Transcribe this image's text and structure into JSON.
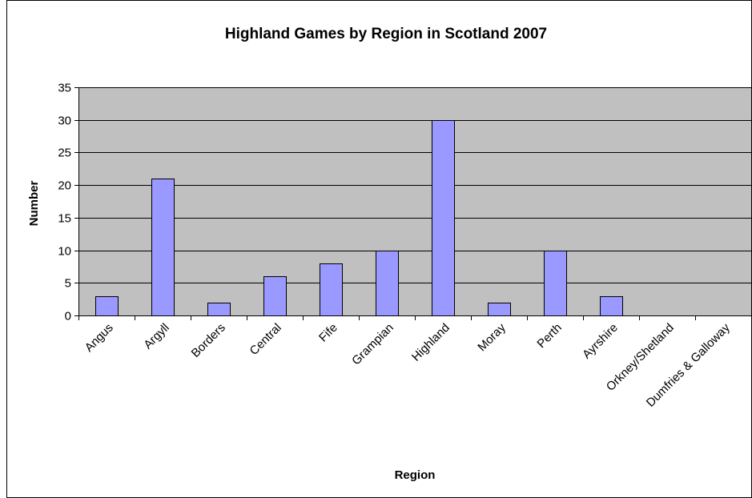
{
  "chart_data": {
    "type": "bar",
    "title": "Highland Games by Region in Scotland 2007",
    "xlabel": "Region",
    "ylabel": "Number",
    "categories": [
      "Angus",
      "Argyll",
      "Borders",
      "Central",
      "Fife",
      "Grampian",
      "Highland",
      "Moray",
      "Perth",
      "Ayrshire",
      "Orkney/Shetland",
      "Dumfries & Galloway"
    ],
    "values": [
      3,
      21,
      2,
      6,
      8,
      10,
      30,
      2,
      10,
      3,
      0,
      0
    ],
    "ylim": [
      0,
      35
    ],
    "yticks": [
      "0",
      "5",
      "10",
      "15",
      "20",
      "25",
      "30",
      "35"
    ],
    "grid": true,
    "legend": "none",
    "colors": {
      "bar_fill": "#9999ff",
      "plot_background": "#c0c0c0",
      "gridline": "#000000"
    }
  }
}
